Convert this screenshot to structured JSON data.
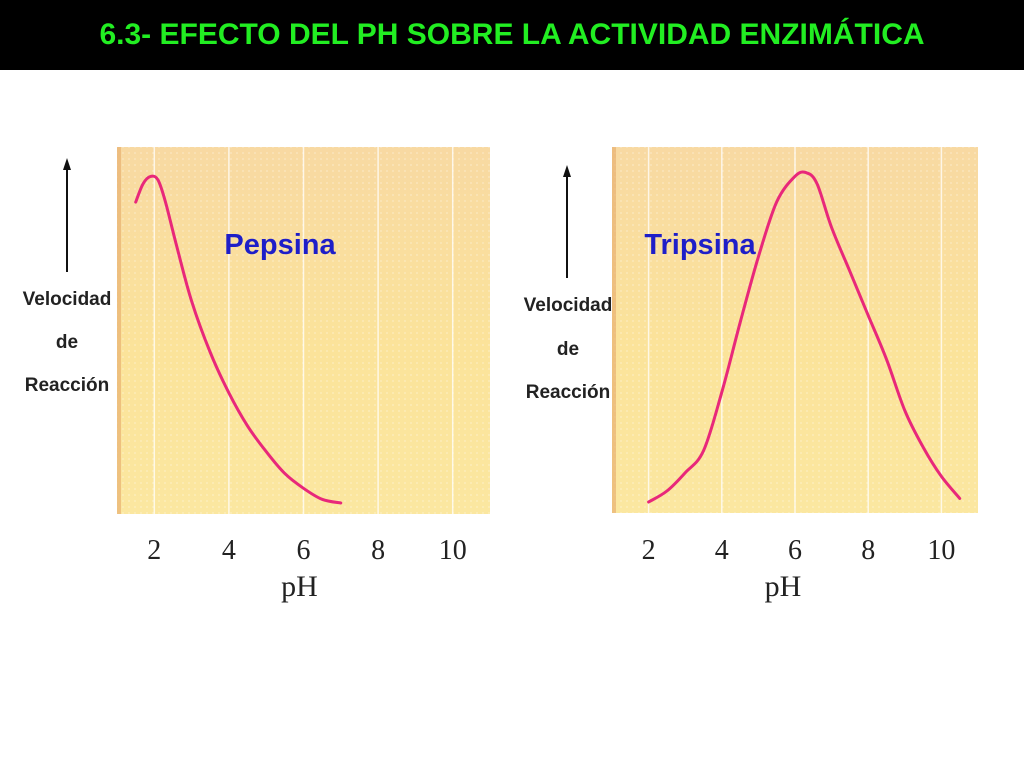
{
  "title": "6.3- EFECTO DEL PH SOBRE LA ACTIVIDAD ENZIMÁTICA",
  "colors": {
    "title_bg": "#000000",
    "title_text": "#22ee22",
    "curve": "#e8287a",
    "label": "#1e1ec8"
  },
  "chart_data": [
    {
      "type": "line",
      "title": "",
      "xlabel": "pH",
      "ylabel_lines": [
        "Velocidad",
        "de",
        "Reacción"
      ],
      "xticks": [
        2,
        4,
        6,
        8,
        10
      ],
      "xlim": [
        1,
        11
      ],
      "ylim": [
        0,
        1
      ],
      "series": [
        {
          "name": "Pepsina",
          "x": [
            1.5,
            1.7,
            1.9,
            2.1,
            2.3,
            2.6,
            3.0,
            3.5,
            4.0,
            4.5,
            5.0,
            5.5,
            6.0,
            6.5,
            7.0
          ],
          "y": [
            0.85,
            0.9,
            0.92,
            0.91,
            0.85,
            0.73,
            0.58,
            0.44,
            0.33,
            0.24,
            0.17,
            0.11,
            0.07,
            0.04,
            0.03
          ]
        }
      ]
    },
    {
      "type": "line",
      "title": "",
      "xlabel": "pH",
      "ylabel_lines": [
        "Velocidad",
        "de",
        "Reacción"
      ],
      "xticks": [
        2,
        4,
        6,
        8,
        10
      ],
      "xlim": [
        1,
        11
      ],
      "ylim": [
        0,
        1
      ],
      "series": [
        {
          "name": "Tripsina",
          "x": [
            2.0,
            2.5,
            3.0,
            3.5,
            4.0,
            4.5,
            5.0,
            5.5,
            6.0,
            6.3,
            6.6,
            7.0,
            7.5,
            8.0,
            8.5,
            9.0,
            9.5,
            10.0,
            10.5
          ],
          "y": [
            0.03,
            0.06,
            0.11,
            0.17,
            0.33,
            0.52,
            0.7,
            0.85,
            0.92,
            0.93,
            0.9,
            0.78,
            0.66,
            0.54,
            0.42,
            0.28,
            0.18,
            0.1,
            0.04
          ]
        }
      ]
    }
  ]
}
